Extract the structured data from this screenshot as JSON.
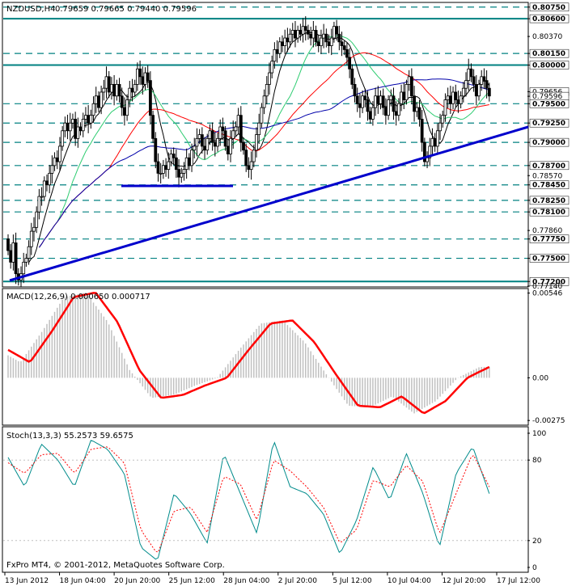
{
  "colors": {
    "background": "#ffffff",
    "grid": "#d8d8d8",
    "candle": "#000000",
    "level_line": "#008080",
    "trendline": "#0000cc",
    "ma_fast": "#000000",
    "ma_green": "#2ecc71",
    "ma_red": "#ff0000",
    "ma_blue": "#0000aa",
    "macd_hist": "#c0c0c0",
    "macd_signal": "#ff0000",
    "stoch_main": "#008b8b",
    "stoch_signal": "#ff0000",
    "price_tag": "#ffffff"
  },
  "header": {
    "symbol": "NZDUSD,H4",
    "ohlc": "0.79659 0.79665 0.79440 0.79596",
    "macd": "MACD(12,26,9) 0.000650 0.000717",
    "stoch": "Stoch(13,3,3) 55.2573 59.6575",
    "footer": "FxPro MT4, © 2001-2012, MetaQuotes Software Corp."
  },
  "chart_data": [
    {
      "type": "candlestick",
      "title": "NZDUSD,H4",
      "ylim": [
        0.7714,
        0.808
      ],
      "x_ticks": [
        "13 Jun 2012",
        "18 Jun 04:00",
        "20 Jun 20:00",
        "25 Jun 12:00",
        "28 Jun 04:00",
        "2 Jul 20:00",
        "5 Jul 12:00",
        "10 Jul 04:00",
        "12 Jul 20:00",
        "17 Jul 12:00"
      ],
      "y_ticks": [
        "0.80750",
        "0.80600",
        "0.80370",
        "0.80150",
        "0.80000",
        "0.79656",
        "0.79596",
        "0.79500",
        "0.79250",
        "0.79000",
        "0.78700",
        "0.78570",
        "0.78450",
        "0.78250",
        "0.78100",
        "0.77860",
        "0.77750",
        "0.77500",
        "0.77200",
        "0.77140"
      ],
      "levels": [
        0.8075,
        0.806,
        0.8015,
        0.8,
        0.795,
        0.7925,
        0.79,
        0.787,
        0.7845,
        0.7825,
        0.781,
        0.7775,
        0.775,
        0.772
      ],
      "closes": [
        0.776,
        0.7745,
        0.777,
        0.773,
        0.7722,
        0.773,
        0.7745,
        0.775,
        0.7765,
        0.7785,
        0.779,
        0.781,
        0.783,
        0.783,
        0.785,
        0.7845,
        0.786,
        0.787,
        0.788,
        0.7875,
        0.7895,
        0.7915,
        0.7925,
        0.7915,
        0.7925,
        0.793,
        0.7905,
        0.792,
        0.7915,
        0.793,
        0.7935,
        0.7925,
        0.7935,
        0.795,
        0.796,
        0.7945,
        0.7965,
        0.797,
        0.7985,
        0.7965,
        0.7975,
        0.796,
        0.7975,
        0.796,
        0.7945,
        0.7935,
        0.7955,
        0.797,
        0.7965,
        0.7975,
        0.7995,
        0.7985,
        0.7975,
        0.799,
        0.798,
        0.7935,
        0.7905,
        0.7875,
        0.786,
        0.786,
        0.787,
        0.7865,
        0.7875,
        0.7885,
        0.788,
        0.7865,
        0.7855,
        0.786,
        0.7865,
        0.788,
        0.787,
        0.789,
        0.7895,
        0.7905,
        0.791,
        0.7895,
        0.789,
        0.7905,
        0.7915,
        0.79,
        0.7895,
        0.7905,
        0.792,
        0.7915,
        0.7895,
        0.7885,
        0.7905,
        0.7915,
        0.792,
        0.7935,
        0.79,
        0.789,
        0.787,
        0.7865,
        0.7875,
        0.789,
        0.791,
        0.7925,
        0.7945,
        0.796,
        0.7975,
        0.799,
        0.8005,
        0.802,
        0.8015,
        0.803,
        0.8025,
        0.8035,
        0.803,
        0.804,
        0.8045,
        0.8035,
        0.8045,
        0.804,
        0.805,
        0.8045,
        0.804,
        0.8035,
        0.8045,
        0.803,
        0.8025,
        0.8035,
        0.804,
        0.803,
        0.8025,
        0.8035,
        0.805,
        0.804,
        0.803,
        0.8025,
        0.802,
        0.801,
        0.7995,
        0.7975,
        0.796,
        0.795,
        0.7945,
        0.796,
        0.7955,
        0.794,
        0.793,
        0.7945,
        0.796,
        0.795,
        0.796,
        0.7945,
        0.7935,
        0.7955,
        0.796,
        0.794,
        0.7935,
        0.795,
        0.7965,
        0.7955,
        0.7975,
        0.7985,
        0.796,
        0.794,
        0.7945,
        0.793,
        0.79,
        0.7875,
        0.788,
        0.7895,
        0.7905,
        0.7895,
        0.7915,
        0.7925,
        0.7935,
        0.7955,
        0.796,
        0.795,
        0.7965,
        0.7955,
        0.795,
        0.796,
        0.797,
        0.798,
        0.7995,
        0.7985,
        0.7975,
        0.796,
        0.7975,
        0.7985,
        0.798,
        0.797,
        0.796
      ]
    },
    {
      "type": "bar+line",
      "title": "MACD(12,26,9) 0.000650 0.000717",
      "ylim": [
        -0.003,
        0.0057
      ],
      "y_ticks": [
        "0.00546",
        "0.00",
        "-0.00275"
      ],
      "signal_keypoints": [
        0.0018,
        0.001,
        0.003,
        0.0052,
        0.0055,
        0.0036,
        0.0005,
        -0.0013,
        -0.0011,
        -0.0005,
        0.0,
        0.0018,
        0.0035,
        0.0037,
        0.0023,
        0.0002,
        -0.0018,
        -0.0019,
        -0.0012,
        -0.0023,
        -0.0015,
        0.0,
        0.0007
      ]
    },
    {
      "type": "line",
      "title": "Stoch(13,3,3) 55.2573 59.6575",
      "ylim": [
        0,
        100
      ],
      "y_ticks": [
        "100",
        "80",
        "20",
        "0"
      ],
      "main_keypoints": [
        82,
        60,
        92,
        80,
        60,
        95,
        88,
        70,
        15,
        5,
        55,
        40,
        18,
        85,
        55,
        25,
        95,
        60,
        55,
        40,
        10,
        35,
        75,
        50,
        85,
        55,
        15,
        70,
        90,
        55
      ],
      "signal_keypoints": [
        78,
        70,
        84,
        85,
        70,
        88,
        90,
        78,
        28,
        10,
        42,
        45,
        26,
        68,
        62,
        35,
        80,
        72,
        60,
        45,
        18,
        28,
        65,
        60,
        76,
        64,
        25,
        55,
        85,
        60
      ]
    }
  ]
}
